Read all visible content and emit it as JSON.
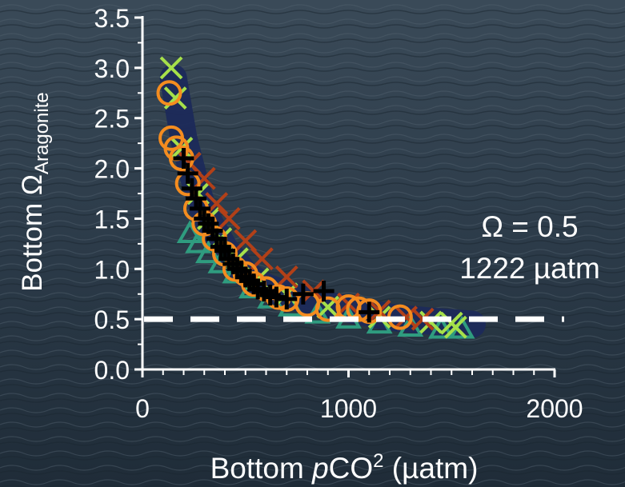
{
  "chart_data": {
    "type": "scatter",
    "xlabel_main": "Bottom ",
    "xlabel_italic": "p",
    "xlabel_co": "CO",
    "xlabel_sup": "2",
    "xlabel_unit": " (µatm)",
    "ylabel_main": "Bottom Ω",
    "ylabel_sub": "Aragonite",
    "xlim": [
      0,
      2000
    ],
    "ylim": [
      0,
      3.5
    ],
    "xticks": [
      0,
      1000,
      2000
    ],
    "xtick_labels": [
      "0",
      "1000",
      "2000"
    ],
    "yticks": [
      0,
      0.5,
      1.0,
      1.5,
      2.0,
      2.5,
      3.0,
      3.5
    ],
    "ytick_labels": [
      "0.0",
      "0.5",
      "1.0",
      "1.5",
      "2.0",
      "2.5",
      "3.0",
      "3.5"
    ],
    "annotation_line1": "Ω = 0.5",
    "annotation_line2": "1222 µatm",
    "reference_line": {
      "y": 0.5,
      "style": "dashed",
      "color": "#ffffff"
    },
    "grid": false,
    "background": "ocean water photo",
    "series": [
      {
        "marker": "band",
        "color": "#1c2a5a",
        "x": [
          150,
          200,
          250,
          300,
          400,
          500,
          600,
          800,
          1000,
          1200,
          1400,
          1600
        ],
        "y": [
          2.9,
          2.3,
          1.9,
          1.55,
          1.2,
          0.95,
          0.82,
          0.68,
          0.6,
          0.52,
          0.48,
          0.45
        ]
      },
      {
        "marker": "triangle",
        "color": "#2f9c7f",
        "x": [
          230,
          270,
          320,
          380,
          450,
          530,
          620,
          720,
          850,
          1000,
          1150,
          1300,
          1450,
          1550
        ],
        "y": [
          1.35,
          1.25,
          1.15,
          1.05,
          0.95,
          0.8,
          0.7,
          0.62,
          0.55,
          0.5,
          0.45,
          0.42,
          0.4,
          0.4
        ]
      },
      {
        "marker": "cross",
        "color": "#a6e04a",
        "x": [
          140,
          160,
          190,
          230,
          270,
          320,
          380,
          460,
          560,
          700,
          900,
          1150,
          1400,
          1500,
          1520
        ],
        "y": [
          3.0,
          2.7,
          2.2,
          2.05,
          1.75,
          1.5,
          1.3,
          1.1,
          0.9,
          0.75,
          0.62,
          0.52,
          0.47,
          0.46,
          0.42
        ]
      },
      {
        "marker": "cross",
        "color": "#b24018",
        "x": [
          230,
          300,
          360,
          420,
          500,
          580,
          700,
          830,
          1000,
          1150,
          1280,
          1360
        ],
        "y": [
          2.05,
          1.9,
          1.65,
          1.5,
          1.28,
          1.1,
          0.92,
          0.78,
          0.65,
          0.58,
          0.52,
          0.5
        ]
      },
      {
        "marker": "circle",
        "color": "#f48c1f",
        "x": [
          130,
          140,
          165,
          190,
          220,
          260,
          300,
          350,
          400,
          450,
          500,
          540,
          600,
          660,
          700,
          800,
          900,
          1000,
          1050,
          1100,
          1250
        ],
        "y": [
          2.75,
          2.3,
          2.2,
          2.1,
          1.85,
          1.6,
          1.45,
          1.3,
          1.15,
          1.0,
          0.95,
          0.85,
          0.8,
          0.72,
          0.7,
          0.65,
          0.6,
          0.62,
          0.6,
          0.58,
          0.52
        ]
      },
      {
        "marker": "plus",
        "color": "#000000",
        "x": [
          200,
          220,
          240,
          260,
          280,
          300,
          320,
          340,
          360,
          380,
          400,
          420,
          440,
          460,
          480,
          500,
          520,
          540,
          560,
          590,
          620,
          650,
          700,
          780,
          880,
          1100
        ],
        "y": [
          2.1,
          1.95,
          1.8,
          1.7,
          1.6,
          1.5,
          1.45,
          1.38,
          1.3,
          1.22,
          1.18,
          1.1,
          1.05,
          1.0,
          0.98,
          0.92,
          0.88,
          0.85,
          0.8,
          0.78,
          0.74,
          0.72,
          0.7,
          0.75,
          0.78,
          0.57
        ]
      }
    ]
  }
}
